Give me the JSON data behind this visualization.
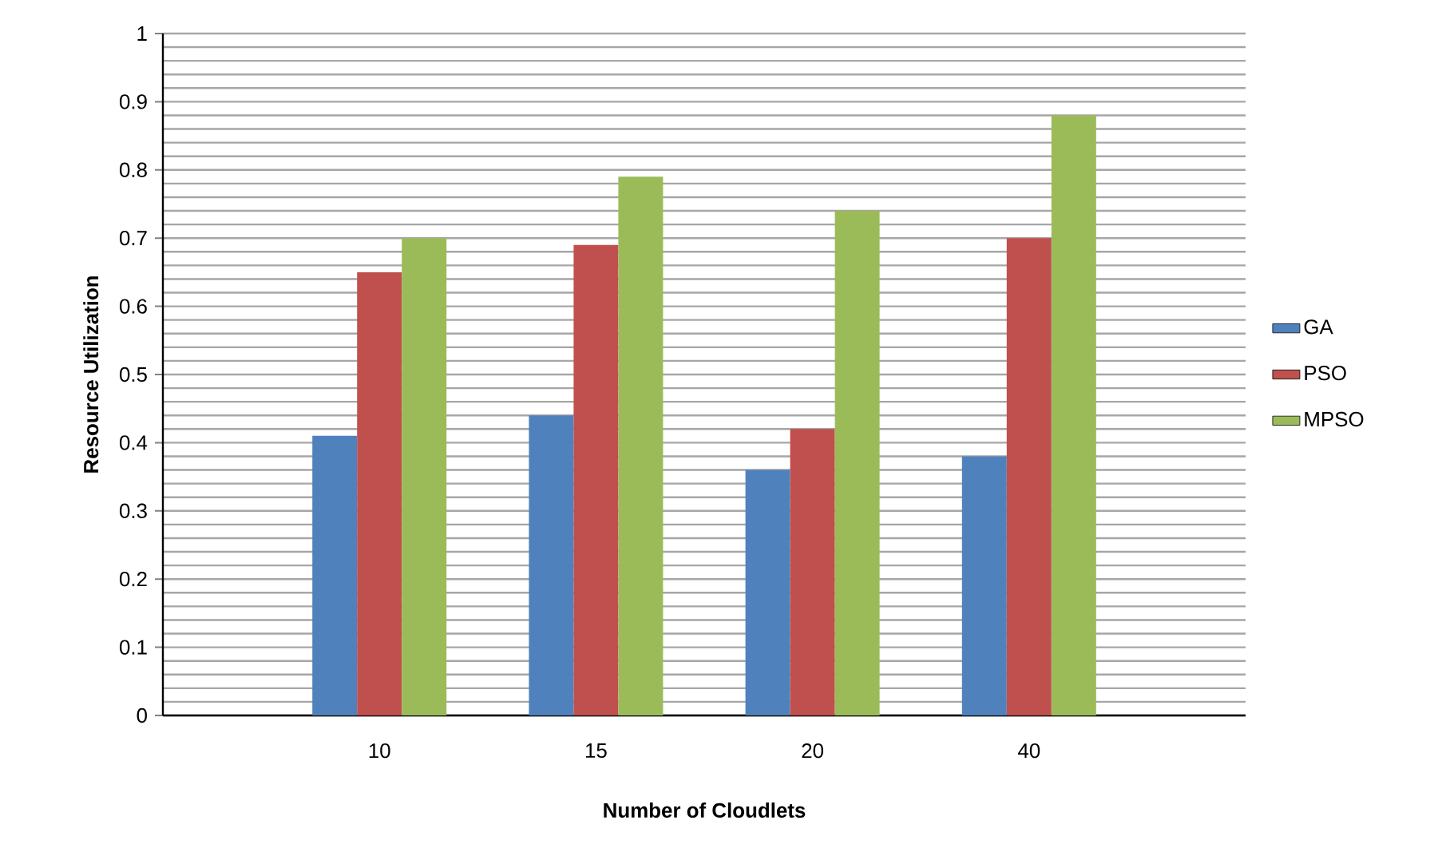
{
  "chart_data": {
    "type": "bar",
    "xlabel": "Number of Cloudlets",
    "ylabel": "Resource Utilization",
    "categories": [
      "10",
      "15",
      "20",
      "40"
    ],
    "series": [
      {
        "name": "GA",
        "color": "#4f81bd",
        "values": [
          0.41,
          0.44,
          0.36,
          0.38
        ]
      },
      {
        "name": "PSO",
        "color": "#c0504d",
        "values": [
          0.65,
          0.69,
          0.42,
          0.7
        ]
      },
      {
        "name": "MPSO",
        "color": "#9bbb59",
        "values": [
          0.7,
          0.79,
          0.74,
          0.88
        ]
      }
    ],
    "ylim": [
      0,
      1
    ],
    "yticks": [
      0,
      0.1,
      0.2,
      0.3,
      0.4,
      0.5,
      0.6,
      0.7,
      0.8,
      0.9,
      1
    ],
    "grid": true,
    "legend": "right"
  }
}
